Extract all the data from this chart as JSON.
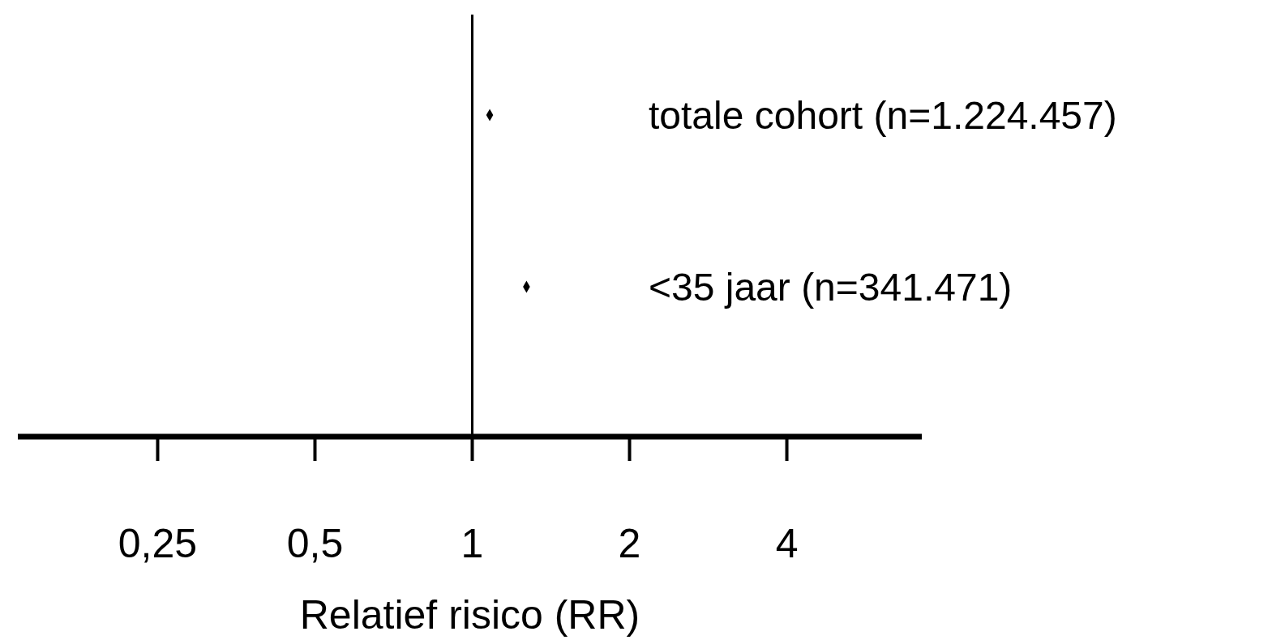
{
  "chart_data": {
    "type": "scatter",
    "orientation": "horizontal",
    "xlabel": "Relatief risico (RR)",
    "categories": [
      "totale cohort (n=1.224.457)",
      "<35 jaar (n=341.471)"
    ],
    "values": [
      1.08,
      1.27
    ],
    "color": "#000000",
    "marker": "diamond",
    "log": "x",
    "xlim": [
      0.135,
      7.25
    ],
    "xticks": [
      {
        "value": 0.25,
        "label": "0,25"
      },
      {
        "value": 0.5,
        "label": "0,5"
      },
      {
        "value": 1,
        "label": "1"
      },
      {
        "value": 2,
        "label": "2"
      },
      {
        "value": 4,
        "label": "4"
      }
    ],
    "ref_lines": [
      {
        "axis": "x",
        "value": 1,
        "color": "#000000"
      }
    ],
    "grid": false,
    "legend": false
  }
}
